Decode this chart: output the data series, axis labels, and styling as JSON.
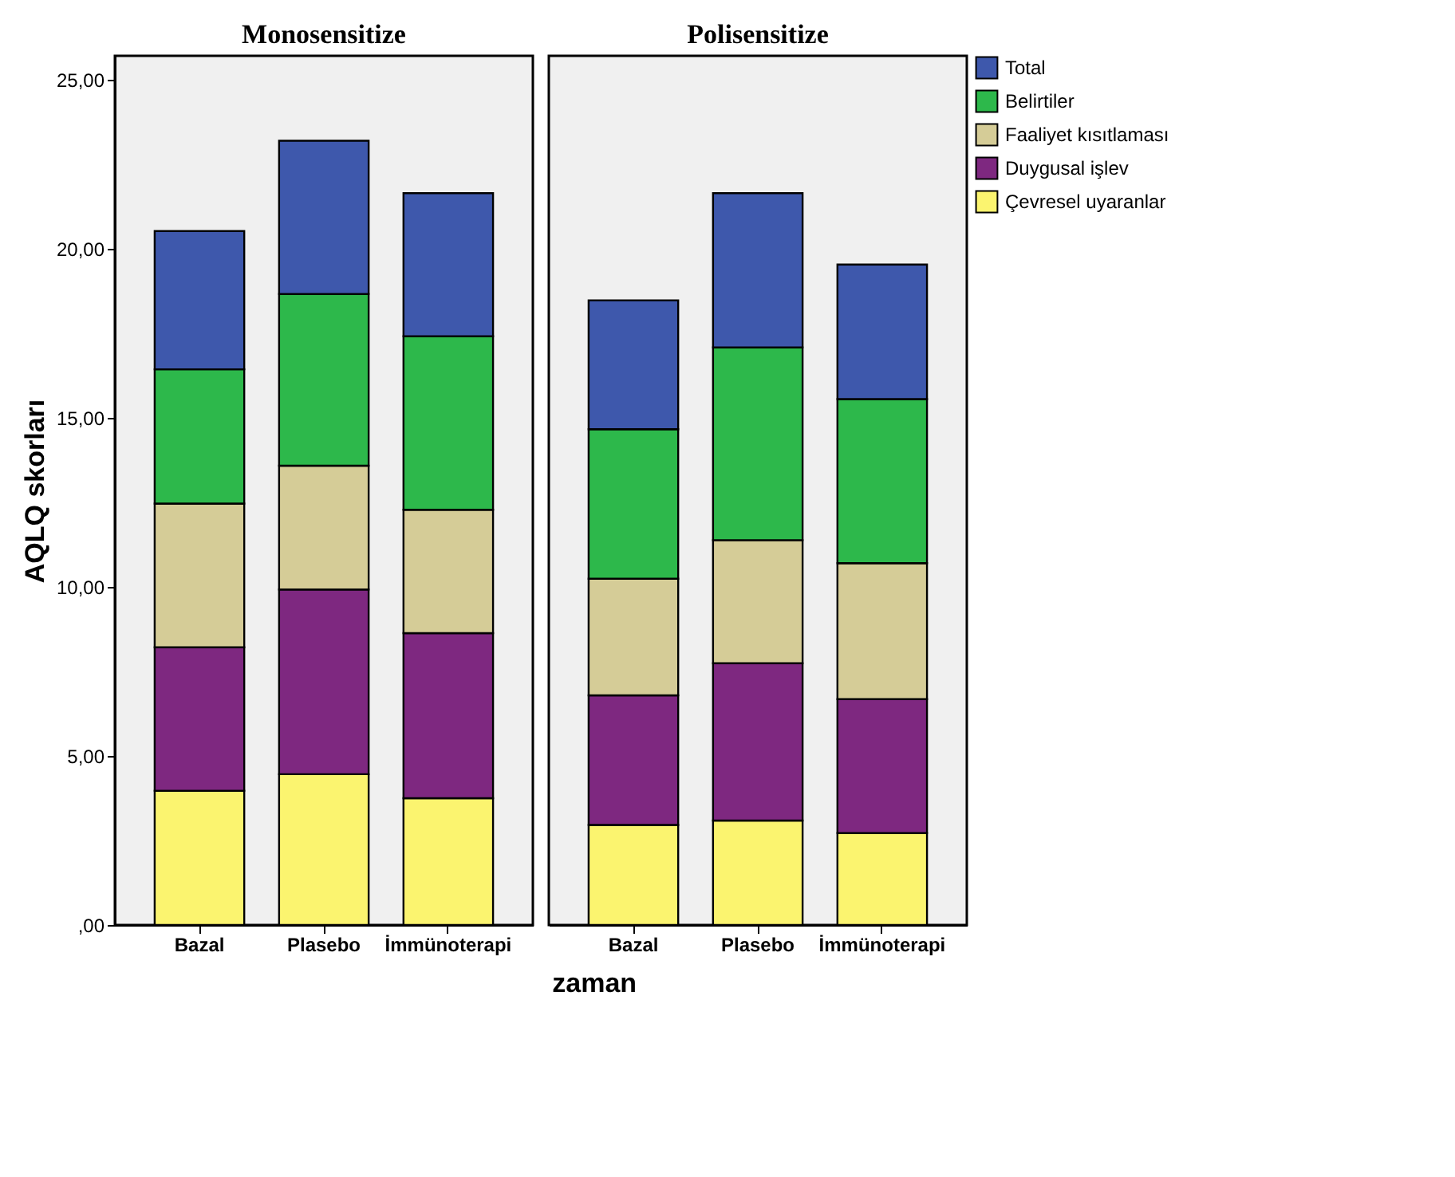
{
  "chart_data": [
    {
      "type": "bar",
      "stacked": true,
      "title": "Monosensitize",
      "xlabel": "zaman",
      "ylabel": "AQLQ skorları",
      "categories": [
        "Bazal",
        "Plasebo",
        "İmmünoterapi"
      ],
      "series": [
        {
          "name": "Çevresel uyaranlar",
          "color": "#fbf46f",
          "values": [
            3.97,
            4.46,
            3.75
          ]
        },
        {
          "name": "Duygusal işlev",
          "color": "#7e2880",
          "values": [
            4.24,
            5.46,
            4.88
          ]
        },
        {
          "name": "Faaliyet kısıtlaması",
          "color": "#d5cc97",
          "values": [
            4.25,
            3.66,
            3.65
          ]
        },
        {
          "name": "Belirtiler",
          "color": "#2db84b",
          "values": [
            3.97,
            5.08,
            5.13
          ]
        },
        {
          "name": "Total",
          "color": "#3e58ac",
          "values": [
            4.09,
            4.53,
            4.23
          ]
        }
      ],
      "ylim": [
        0,
        25.7
      ],
      "yticks": [
        {
          "value": 0,
          "label": ",00"
        },
        {
          "value": 5,
          "label": "5,00"
        },
        {
          "value": 10,
          "label": "10,00"
        },
        {
          "value": 15,
          "label": "15,00"
        },
        {
          "value": 20,
          "label": "20,00"
        },
        {
          "value": 25,
          "label": "25,00"
        }
      ],
      "grid": false,
      "legend": "top right"
    },
    {
      "type": "bar",
      "stacked": true,
      "title": "Polisensitize",
      "categories": [
        "Bazal",
        "Plasebo",
        "İmmünoterapi"
      ],
      "series": [
        {
          "color": "#fbf46f",
          "values": [
            2.96,
            3.09,
            2.72
          ]
        },
        {
          "color": "#7e2880",
          "values": [
            3.83,
            4.65,
            3.96
          ]
        },
        {
          "color": "#d5cc97",
          "values": [
            3.45,
            3.64,
            4.02
          ]
        },
        {
          "color": "#2db84b",
          "values": [
            4.42,
            5.7,
            4.85
          ]
        },
        {
          "color": "#3e58ac",
          "values": [
            3.81,
            4.56,
            3.98
          ]
        }
      ],
      "ylim": [
        0,
        25.7
      ],
      "tick_labels": "x",
      "grid": false
    }
  ]
}
